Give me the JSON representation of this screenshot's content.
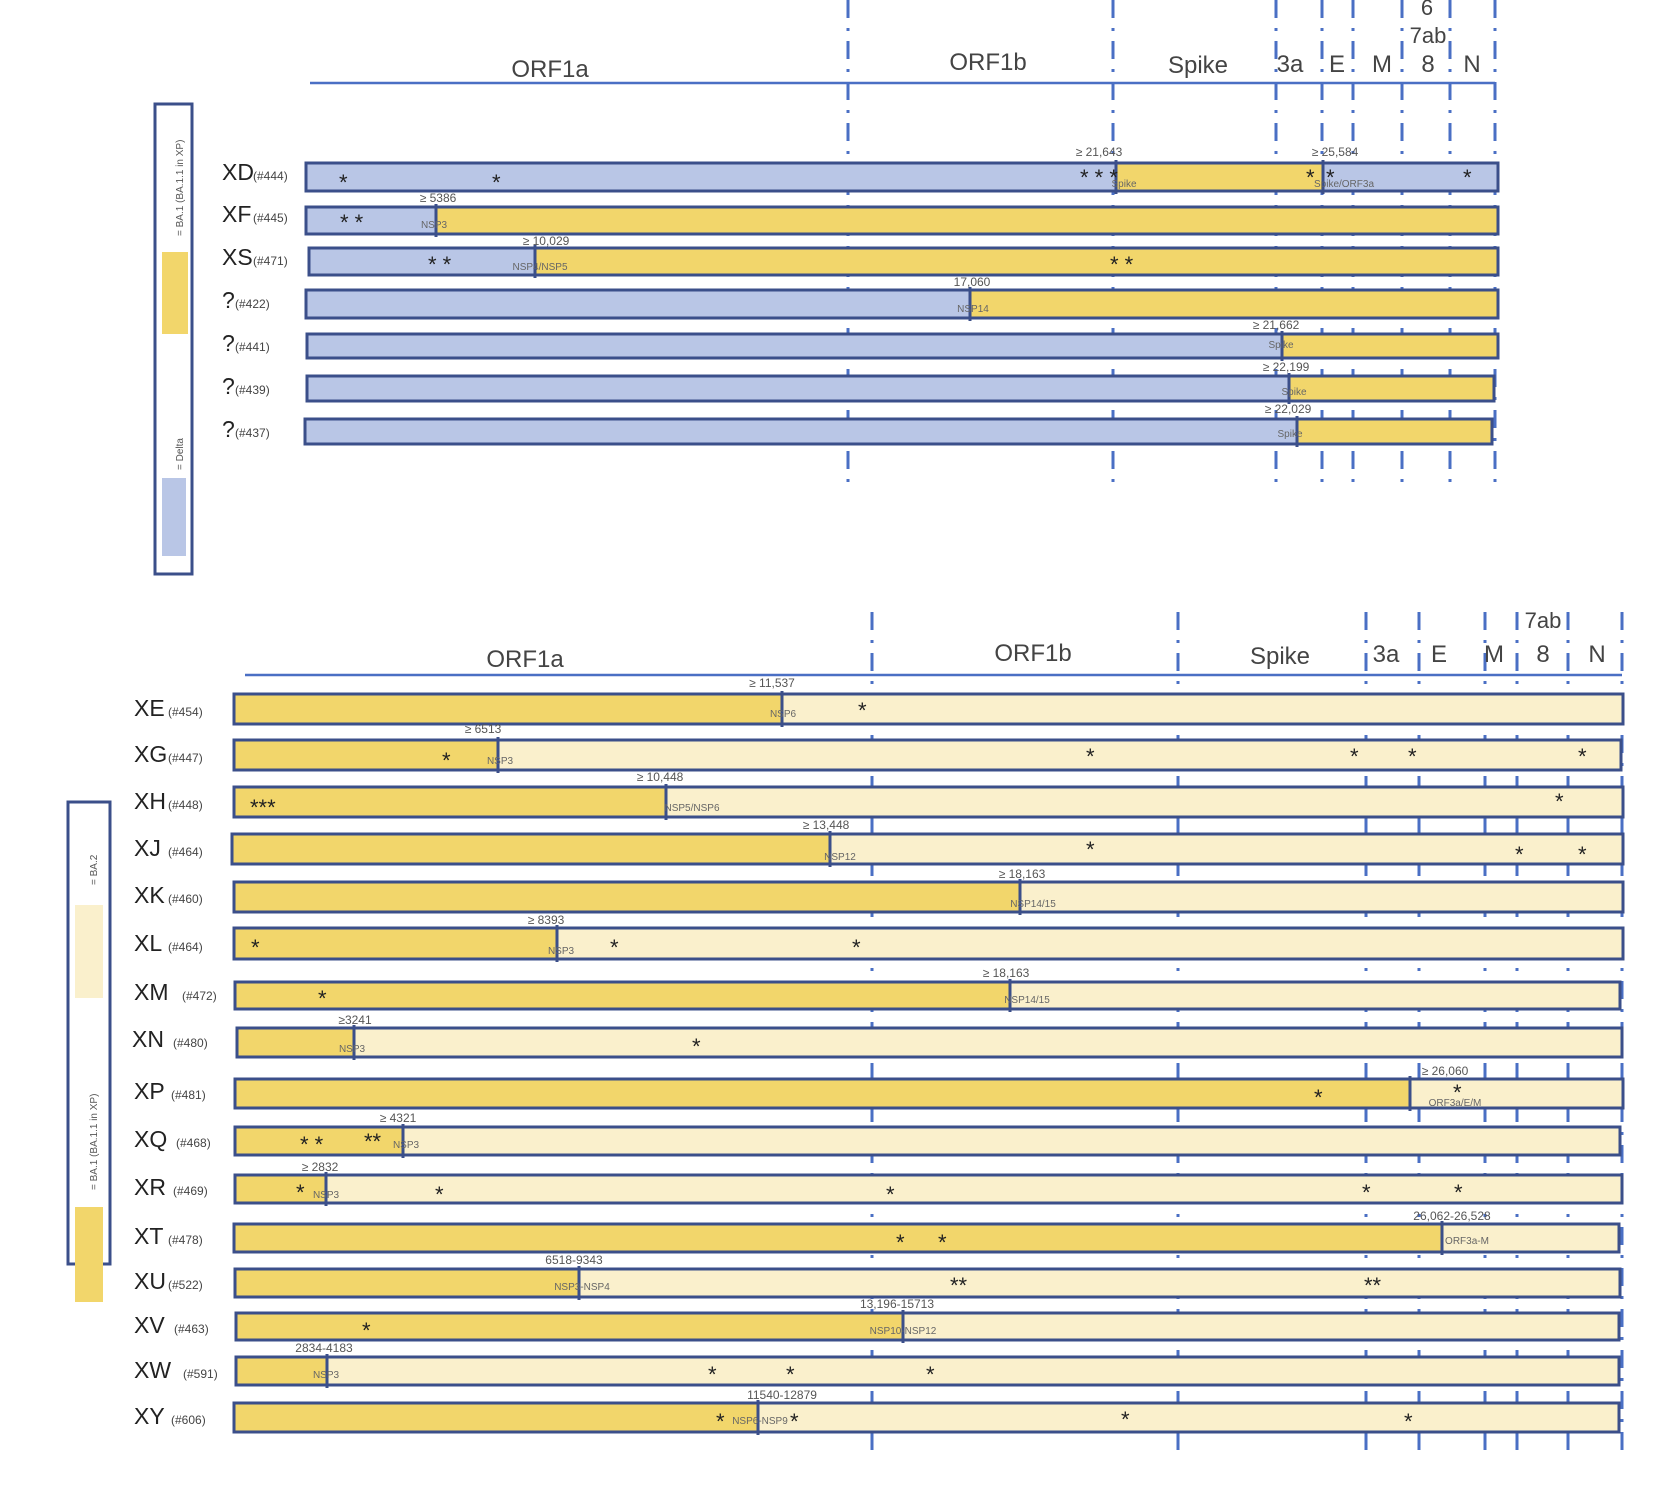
{
  "top_panel": {
    "genes": [
      "ORF1a",
      "ORF1b",
      "Spike",
      "3a",
      "E",
      "M",
      "8",
      "N",
      "6",
      "7ab"
    ],
    "legend": {
      "label_a": "= BA.1 (BA.1.1 in XP)",
      "label_b": "= Delta",
      "color_a": "#f2d66b",
      "color_b": "#b9c6e6"
    },
    "rows": [
      {
        "name": "XD",
        "id": "(#444)",
        "left": "Delta",
        "mid": "BA.1",
        "right": "Delta",
        "breakpoint1": "≥ 21,643",
        "region1": "Spike",
        "breakpoint2": "≥ 25,584",
        "region2": "Spike/ORF3a"
      },
      {
        "name": "XF",
        "id": "(#445)",
        "left": "Delta",
        "right": "BA.1",
        "breakpoint": "≥ 5386",
        "region": "NSP3"
      },
      {
        "name": "XS",
        "id": "(#471)",
        "left": "Delta",
        "right": "BA.1",
        "breakpoint": "≥ 10,029",
        "region": "NSP4/NSP5"
      },
      {
        "name": "?",
        "id": "(#422)",
        "left": "Delta",
        "right": "BA.1",
        "breakpoint": "17,060",
        "region": "NSP14"
      },
      {
        "name": "?",
        "id": "(#441)",
        "left": "Delta",
        "right": "BA.1",
        "breakpoint": "≥ 21,662",
        "region": "Spike"
      },
      {
        "name": "?",
        "id": "(#439)",
        "left": "Delta",
        "right": "BA.1",
        "breakpoint": "≥ 22,199",
        "region": "Spike"
      },
      {
        "name": "?",
        "id": "(#437)",
        "left": "Delta",
        "right": "BA.1",
        "breakpoint": "≥ 22,029",
        "region": "Spike"
      }
    ]
  },
  "bottom_panel": {
    "genes": [
      "ORF1a",
      "ORF1b",
      "Spike",
      "3a",
      "E",
      "M",
      "8",
      "N",
      "7ab"
    ],
    "legend": {
      "label_a": "= BA.1 (BA.1.1 in XP)",
      "label_b": "= BA.2",
      "color_a": "#f2d66b",
      "color_b": "#faf0cc"
    },
    "rows": [
      {
        "name": "XE",
        "id": "(#454)",
        "breakpoint": "≥ 11,537",
        "region": "NSP6"
      },
      {
        "name": "XG",
        "id": "(#447)",
        "breakpoint": "≥ 6513",
        "region": "NSP3"
      },
      {
        "name": "XH",
        "id": "(#448)",
        "breakpoint": "≥ 10,448",
        "region": "NSP5/NSP6"
      },
      {
        "name": "XJ",
        "id": "(#464)",
        "breakpoint": "≥ 13,448",
        "region": "NSP12"
      },
      {
        "name": "XK",
        "id": "(#460)",
        "breakpoint": "≥ 18,163",
        "region": "NSP14/15"
      },
      {
        "name": "XL",
        "id": "(#464)",
        "breakpoint": "≥ 8393",
        "region": "NSP3"
      },
      {
        "name": "XM",
        "id": "(#472)",
        "breakpoint": "≥ 18,163",
        "region": "NSP14/15"
      },
      {
        "name": "XN",
        "id": "(#480)",
        "breakpoint": "≥3241",
        "region": "NSP3"
      },
      {
        "name": "XP",
        "id": "(#481)",
        "breakpoint": "≥ 26,060",
        "region": "ORF3a/E/M"
      },
      {
        "name": "XQ",
        "id": "(#468)",
        "breakpoint": "≥ 4321",
        "region": "NSP3"
      },
      {
        "name": "XR",
        "id": "(#469)",
        "breakpoint": "≥ 2832",
        "region": "NSP3"
      },
      {
        "name": "XT",
        "id": "(#478)",
        "breakpoint": "26,062-26,528",
        "region": "ORF3a-M"
      },
      {
        "name": "XU",
        "id": "(#522)",
        "breakpoint": "6518-9343",
        "region": "NSP3-NSP4"
      },
      {
        "name": "XV",
        "id": "(#463)",
        "breakpoint": "13,196-15713",
        "region": "NSP10-NSP12"
      },
      {
        "name": "XW",
        "id": "(#591)",
        "breakpoint": "2834-4183",
        "region": "NSP3"
      },
      {
        "name": "XY",
        "id": "(#606)",
        "breakpoint": "11540-12879",
        "region": "NSP6-NSP9"
      }
    ]
  }
}
